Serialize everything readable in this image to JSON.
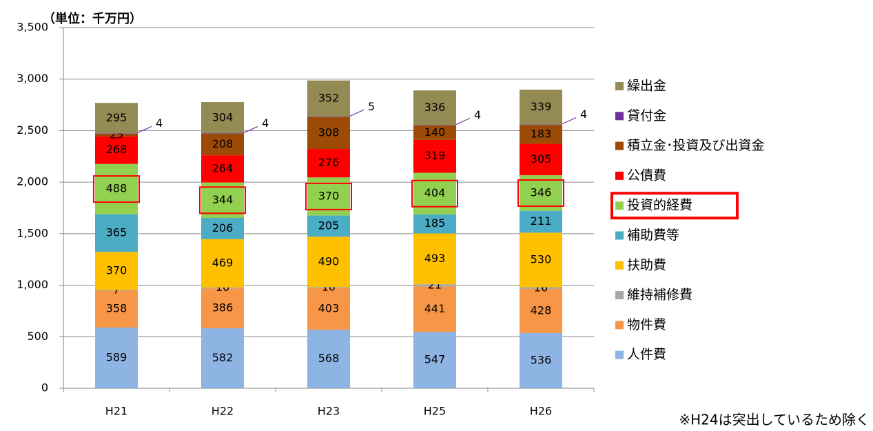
{
  "chart_data": {
    "type": "bar",
    "stacked": true,
    "unit_label": "（単位：千万円）",
    "note": "※H24は突出しているため除く",
    "categories": [
      "H21",
      "H22",
      "H23",
      "H25",
      "H26"
    ],
    "series": [
      {
        "name": "人件費",
        "color": "#8eb4e3",
        "values": [
          589,
          582,
          568,
          547,
          536
        ]
      },
      {
        "name": "物件費",
        "color": "#f79646",
        "values": [
          358,
          386,
          403,
          441,
          428
        ]
      },
      {
        "name": "維持補修費",
        "color": "#a6a6a6",
        "values": [
          7,
          10,
          10,
          21,
          16
        ]
      },
      {
        "name": "扶助費",
        "color": "#ffc000",
        "values": [
          370,
          469,
          490,
          493,
          530
        ]
      },
      {
        "name": "補助費等",
        "color": "#4bacc6",
        "values": [
          365,
          206,
          205,
          185,
          211
        ]
      },
      {
        "name": "投資的経費",
        "color": "#92d050",
        "values": [
          488,
          344,
          370,
          404,
          346
        ]
      },
      {
        "name": "公債費",
        "color": "#ff0000",
        "values": [
          268,
          264,
          276,
          319,
          305
        ]
      },
      {
        "name": "積立金･投資及び出資金",
        "color": "#9c4a06",
        "values": [
          25,
          208,
          308,
          140,
          183
        ]
      },
      {
        "name": "貸付金",
        "color": "#7030a0",
        "values": [
          4,
          4,
          5,
          4,
          4
        ]
      },
      {
        "name": "繰出金",
        "color": "#948a54",
        "values": [
          295,
          304,
          352,
          336,
          339
        ]
      }
    ],
    "ylim": [
      0,
      3500
    ],
    "yticks": [
      0,
      500,
      {
        "value": 1000,
        "label": "1,000"
      },
      {
        "value": 1500,
        "label": "1,500"
      },
      {
        "value": 2000,
        "label": "2,000"
      },
      {
        "value": 2500,
        "label": "2,500"
      },
      {
        "value": 3000,
        "label": "3,000"
      },
      {
        "value": 3500,
        "label": "3,500"
      }
    ],
    "grid": true,
    "legend": "right"
  }
}
